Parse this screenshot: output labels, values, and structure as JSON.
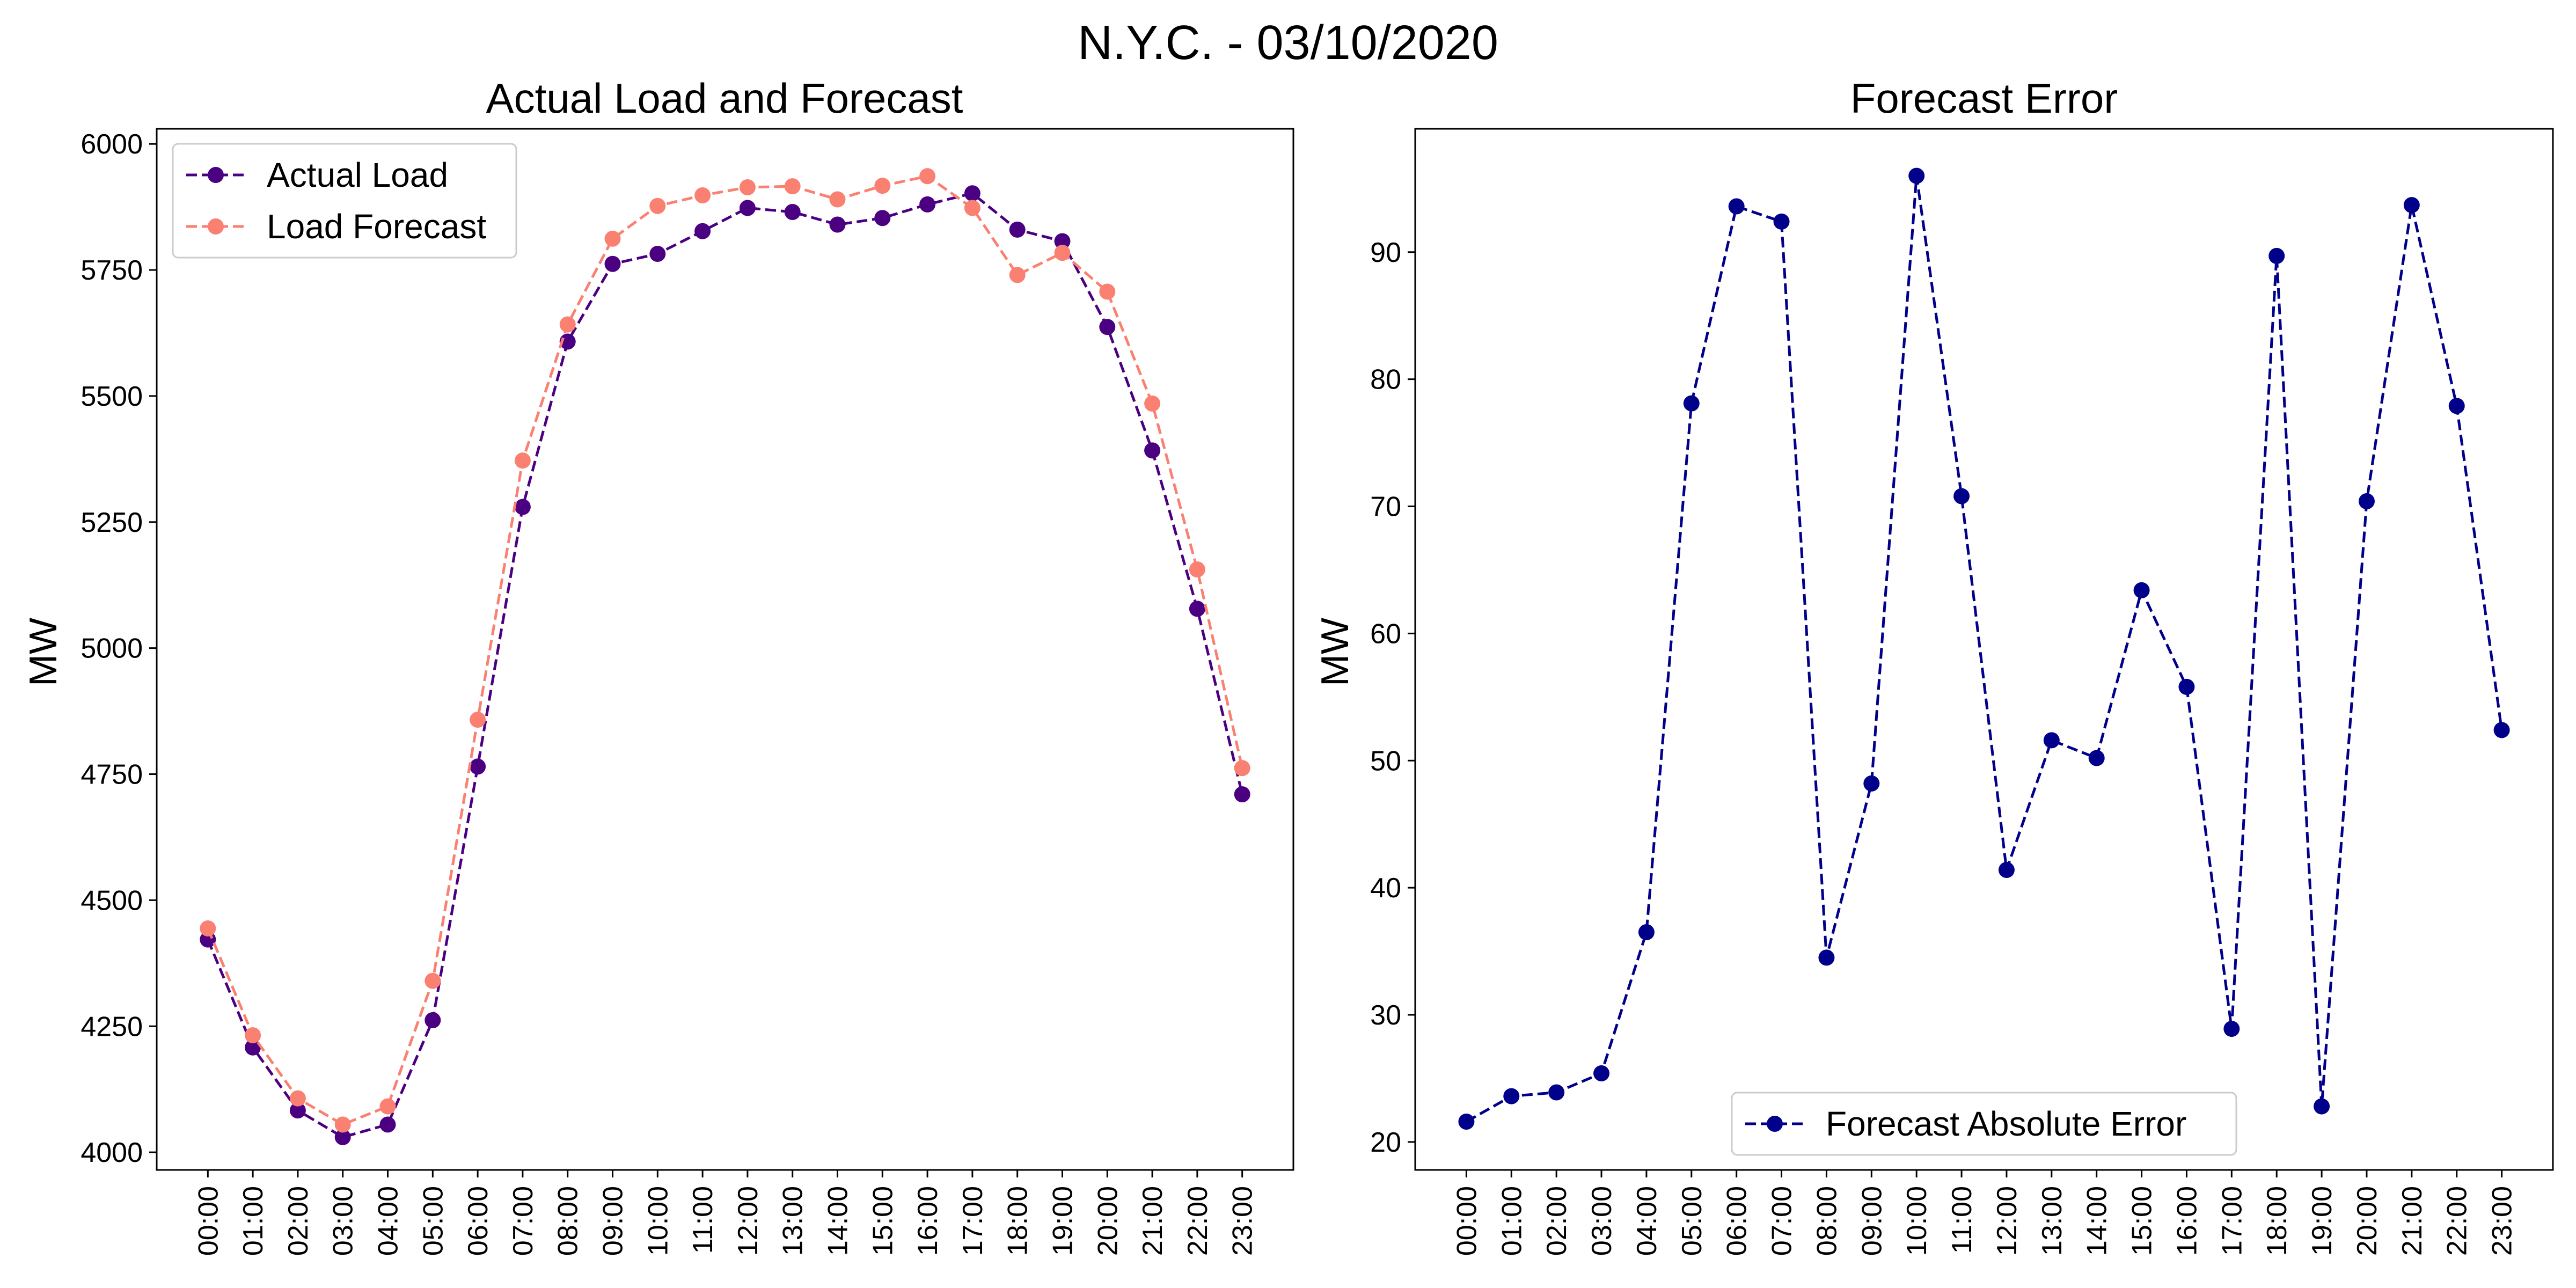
{
  "figure": {
    "title": "N.Y.C. - 03/10/2020"
  },
  "chart_data": [
    {
      "type": "line",
      "title": "Actual Load and Forecast",
      "xlabel": "",
      "ylabel": "MW",
      "categories": [
        "00:00",
        "01:00",
        "02:00",
        "03:00",
        "04:00",
        "05:00",
        "06:00",
        "07:00",
        "08:00",
        "09:00",
        "10:00",
        "11:00",
        "12:00",
        "13:00",
        "14:00",
        "15:00",
        "16:00",
        "17:00",
        "18:00",
        "19:00",
        "20:00",
        "21:00",
        "22:00",
        "23:00"
      ],
      "ylim": [
        3965,
        6030
      ],
      "yticks": [
        4000,
        4250,
        4500,
        4750,
        5000,
        5250,
        5500,
        5750,
        6000
      ],
      "legend_position": "upper-left",
      "series": [
        {
          "name": "Actual Load",
          "color": "#4b0082",
          "values": [
            4422,
            4208,
            4083,
            4030,
            4055,
            4262,
            4765,
            5280,
            5608,
            5762,
            5782,
            5827,
            5873,
            5865,
            5840,
            5853,
            5880,
            5902,
            5830,
            5807,
            5637,
            5392,
            5078,
            4710
          ]
        },
        {
          "name": "Load Forecast",
          "color": "#fa8072",
          "values": [
            4444,
            4232,
            4107,
            4055,
            4091,
            4340,
            4858,
            5372,
            5642,
            5812,
            5877,
            5898,
            5914,
            5916,
            5890,
            5917,
            5936,
            5873,
            5740,
            5784,
            5707,
            5485,
            5156,
            4762
          ]
        }
      ]
    },
    {
      "type": "line",
      "title": "Forecast Error",
      "xlabel": "",
      "ylabel": "MW",
      "categories": [
        "00:00",
        "01:00",
        "02:00",
        "03:00",
        "04:00",
        "05:00",
        "06:00",
        "07:00",
        "08:00",
        "09:00",
        "10:00",
        "11:00",
        "12:00",
        "13:00",
        "14:00",
        "15:00",
        "16:00",
        "17:00",
        "18:00",
        "19:00",
        "20:00",
        "21:00",
        "22:00",
        "23:00"
      ],
      "ylim": [
        17.8,
        99.7
      ],
      "yticks": [
        20,
        30,
        40,
        50,
        60,
        70,
        80,
        90
      ],
      "legend_position": "lower-center",
      "series": [
        {
          "name": "Forecast Absolute Error",
          "color": "#00008b",
          "values": [
            21.6,
            23.6,
            23.9,
            25.4,
            36.5,
            78.1,
            93.6,
            92.4,
            34.5,
            48.2,
            96.0,
            70.8,
            41.4,
            51.6,
            50.2,
            63.4,
            55.8,
            28.9,
            89.7,
            22.8,
            70.4,
            93.7,
            77.9,
            52.4
          ]
        }
      ]
    }
  ]
}
